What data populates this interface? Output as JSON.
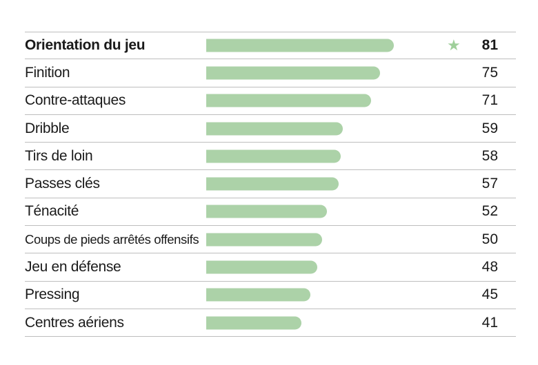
{
  "chart_data": {
    "type": "bar",
    "orientation": "horizontal",
    "categories": [
      "Orientation du jeu",
      "Finition",
      "Contre-attaques",
      "Dribble",
      "Tirs de loin",
      "Passes clés",
      "Ténacité",
      "Coups de pieds arrêtés offensifs",
      "Jeu en défense",
      "Pressing",
      "Centres aériens"
    ],
    "values": [
      81,
      75,
      71,
      59,
      58,
      57,
      52,
      50,
      48,
      45,
      41
    ],
    "highlighted_index": 0,
    "highlight_marker": "star-icon",
    "ylim": [
      0,
      100
    ],
    "bar_color": "#acd2a8",
    "grid": false,
    "legend": "none"
  }
}
